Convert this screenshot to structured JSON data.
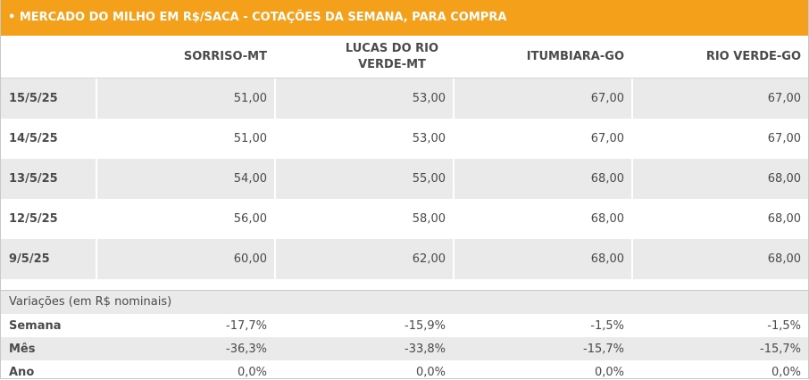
{
  "title": "• MERCADO DO MILHO EM R$/SACA - COTAÇÕES DA SEMANA, PARA COMPRA",
  "columns": [
    "",
    "SORRISO-MT",
    "LUCAS DO RIO VERDE-MT",
    "ITUMBIARA-GO",
    "RIO VERDE-GO"
  ],
  "rows": [
    {
      "date": "15/5/25",
      "values": [
        "51,00",
        "53,00",
        "67,00",
        "67,00"
      ]
    },
    {
      "date": "14/5/25",
      "values": [
        "51,00",
        "53,00",
        "67,00",
        "67,00"
      ]
    },
    {
      "date": "13/5/25",
      "values": [
        "54,00",
        "55,00",
        "68,00",
        "68,00"
      ]
    },
    {
      "date": "12/5/25",
      "values": [
        "56,00",
        "58,00",
        "68,00",
        "68,00"
      ]
    },
    {
      "date": "9/5/25",
      "values": [
        "60,00",
        "62,00",
        "68,00",
        "68,00"
      ]
    }
  ],
  "variations": {
    "title": "Variações (em R$ nominais)",
    "rows": [
      {
        "label": "Semana",
        "values": [
          "-17,7%",
          "-15,9%",
          "-1,5%",
          "-1,5%"
        ]
      },
      {
        "label": "Mês",
        "values": [
          "-36,3%",
          "-33,8%",
          "-15,7%",
          "-15,7%"
        ]
      },
      {
        "label": "Ano",
        "values": [
          "0,0%",
          "0,0%",
          "0,0%",
          "0,0%"
        ]
      }
    ]
  },
  "colors": {
    "title_bg": "#f5a01a",
    "title_text": "#ffffff",
    "shade": "#eaeaea",
    "text": "#4a4a4a"
  }
}
